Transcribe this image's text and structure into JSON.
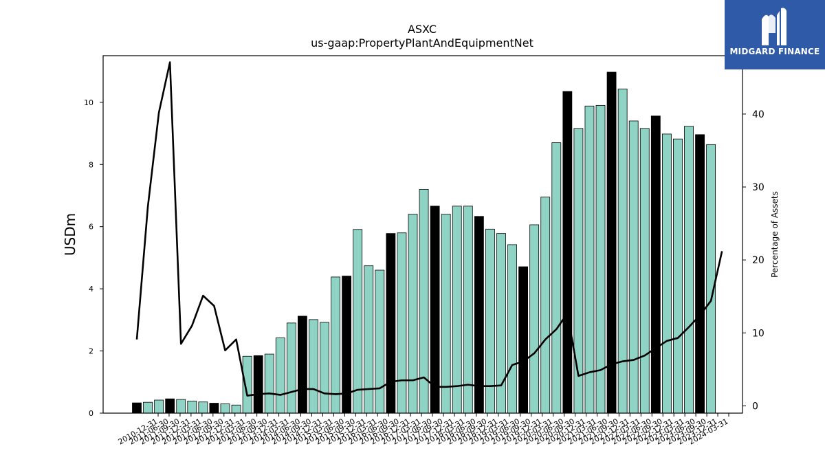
{
  "chart_data": {
    "type": "bar",
    "title": "ASXC",
    "subtitle": "us-gaap:PropertyPlantAndEquipmentNet",
    "ylabel": "USDm",
    "y2label": "Percentage of Assets",
    "ylim": [
      0,
      11.5
    ],
    "y2lim": [
      -1,
      48
    ],
    "yticks": [
      0,
      2,
      4,
      6,
      8,
      10
    ],
    "y2ticks": [
      0,
      10,
      20,
      30,
      40
    ],
    "bar_colors": {
      "quarter": "#8fd3c4",
      "year_end": "#000000"
    },
    "line_color": "#000000",
    "categories": [
      "2010-12-31",
      "2011-03-31",
      "2011-06-30",
      "2011-09-30",
      "2011-12-31",
      "2012-03-31",
      "2012-06-30",
      "2012-09-30",
      "2012-12-31",
      "2013-03-31",
      "2013-06-30",
      "2013-09-30",
      "2013-12-31",
      "2014-03-31",
      "2014-06-30",
      "2014-09-30",
      "2014-12-31",
      "2015-03-31",
      "2015-06-30",
      "2015-09-30",
      "2015-12-31",
      "2016-03-31",
      "2016-06-30",
      "2016-09-30",
      "2016-12-31",
      "2017-03-31",
      "2017-06-30",
      "2017-09-30",
      "2017-12-31",
      "2018-03-31",
      "2018-06-30",
      "2018-09-30",
      "2018-12-31",
      "2019-03-31",
      "2019-06-30",
      "2019-09-30",
      "2019-12-31",
      "2020-03-31",
      "2020-06-30",
      "2020-09-30",
      "2020-12-31",
      "2021-03-31",
      "2021-06-30",
      "2021-09-30",
      "2021-12-31",
      "2022-03-31",
      "2022-06-30",
      "2022-09-30",
      "2022-12-31",
      "2023-03-31",
      "2023-06-30",
      "2023-09-30",
      "2023-12-31",
      "2024-03-31"
    ],
    "visible_tick_labels": [
      "2010-12-31",
      "2011-06-30",
      "2011-09-30",
      "2011-12-31",
      "2012-03-31",
      "2012-06-30",
      "2012-09-30",
      "2012-12-31",
      "2013-03-31",
      "2013-06-30",
      "2013-09-30",
      "2013-12-31",
      "2014-03-31",
      "2014-06-30",
      "2014-09-30",
      "2014-12-31",
      "2015-03-31",
      "2015-06-30",
      "2015-09-30",
      "2015-12-31",
      "2016-03-31",
      "2016-06-30",
      "2016-09-30",
      "2016-12-31",
      "2017-03-31",
      "2017-06-30",
      "2017-09-30",
      "2017-12-31",
      "2018-03-31",
      "2018-06-30",
      "2018-09-30",
      "2018-12-31",
      "2019-03-31",
      "2019-06-30",
      "2019-09-30",
      "2019-12-31",
      "2020-03-31",
      "2020-06-30",
      "2020-09-30",
      "2020-12-31",
      "2021-03-31",
      "2021-06-30",
      "2021-09-30",
      "2021-12-31",
      "2022-03-31",
      "2022-06-30",
      "2022-09-30",
      "2022-12-31",
      "2023-03-31",
      "2023-06-30",
      "2023-09-30",
      "2023-12-31",
      "2024-03-31"
    ],
    "series": [
      {
        "kind": "bar",
        "axis": "left",
        "values": [
          0.33,
          0.35,
          0.42,
          0.46,
          0.44,
          0.39,
          0.36,
          0.32,
          0.3,
          0.26,
          1.83,
          1.85,
          1.9,
          2.42,
          2.9,
          3.12,
          3.01,
          2.92,
          4.38,
          4.41,
          5.91,
          4.74,
          4.6,
          5.78,
          5.8,
          6.4,
          7.2,
          6.66,
          6.4,
          6.66,
          6.66,
          6.33,
          5.92,
          5.78,
          5.42,
          4.71,
          6.06,
          6.95,
          8.7,
          10.35,
          9.16,
          9.88,
          9.9,
          10.97,
          10.43,
          9.4,
          9.16,
          9.56,
          8.98,
          8.82,
          9.23,
          8.96,
          8.64,
          null
        ],
        "year_end": [
          true,
          false,
          false,
          true,
          false,
          false,
          false,
          true,
          false,
          false,
          false,
          true,
          false,
          false,
          false,
          true,
          false,
          false,
          false,
          true,
          false,
          false,
          false,
          true,
          false,
          false,
          false,
          true,
          false,
          false,
          false,
          true,
          false,
          false,
          false,
          true,
          false,
          false,
          false,
          true,
          false,
          false,
          false,
          true,
          false,
          false,
          false,
          true,
          false,
          false,
          false,
          true,
          false,
          false
        ]
      },
      {
        "kind": "line",
        "axis": "right",
        "values": [
          9.1,
          27.3,
          40.2,
          47.1,
          8.5,
          11.0,
          15.1,
          13.7,
          7.6,
          9.1,
          1.4,
          1.6,
          1.7,
          1.5,
          1.9,
          2.3,
          2.3,
          1.7,
          1.6,
          1.7,
          2.2,
          2.3,
          2.4,
          3.3,
          3.5,
          3.5,
          3.9,
          2.6,
          2.6,
          2.7,
          2.9,
          2.7,
          2.7,
          2.8,
          5.6,
          6.1,
          7.2,
          9.1,
          10.5,
          12.7,
          4.1,
          4.6,
          4.9,
          5.7,
          6.1,
          6.3,
          6.9,
          7.9,
          8.9,
          9.3,
          10.8,
          12.4,
          14.4,
          21.2
        ]
      }
    ]
  },
  "logo": {
    "text": "MIDGARD FINANCE"
  }
}
